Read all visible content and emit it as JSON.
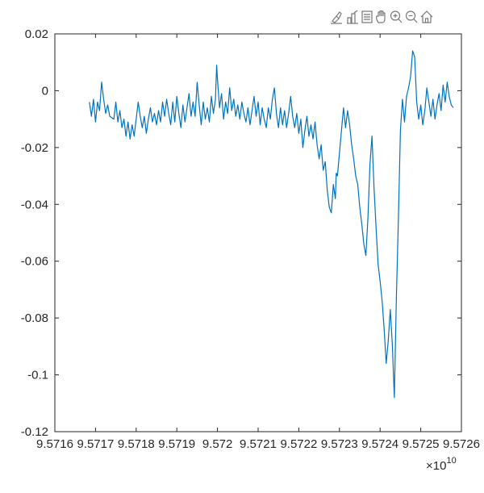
{
  "toolbar": {
    "buttons": [
      {
        "name": "brush-icon"
      },
      {
        "name": "data-tips-icon"
      },
      {
        "name": "legend-icon"
      },
      {
        "name": "pan-hand-icon"
      },
      {
        "name": "zoom-in-icon"
      },
      {
        "name": "zoom-out-icon"
      },
      {
        "name": "home-restore-view-icon"
      }
    ]
  },
  "chart_data": {
    "type": "line",
    "title": "",
    "xlabel": "",
    "ylabel": "",
    "xlim": [
      95716000000,
      95726000000
    ],
    "ylim": [
      -0.12,
      0.02
    ],
    "x_ticks": [
      95716000000,
      95717000000,
      95718000000,
      95719000000,
      95720000000,
      95721000000,
      95722000000,
      95723000000,
      95724000000,
      95725000000,
      95726000000
    ],
    "x_tick_labels": [
      "9.5716",
      "9.5717",
      "9.5718",
      "9.5719",
      "9.572",
      "9.5721",
      "9.5722",
      "9.5723",
      "9.5724",
      "9.5725",
      "9.5726"
    ],
    "x_exponent_base": "×10",
    "x_exponent_power": "10",
    "y_ticks": [
      0.02,
      0,
      -0.02,
      -0.04,
      -0.06,
      -0.08,
      -0.1,
      -0.12
    ],
    "y_tick_labels": [
      "0.02",
      "0",
      "-0.02",
      "-0.04",
      "-0.06",
      "-0.08",
      "-0.1",
      "-0.12"
    ],
    "grid": false,
    "color": "#0072BD",
    "series": [
      {
        "points": [
          [
            95716850000,
            -0.004
          ],
          [
            95716900000,
            -0.009
          ],
          [
            95716950000,
            -0.003
          ],
          [
            95717000000,
            -0.011
          ],
          [
            95717050000,
            -0.004
          ],
          [
            95717100000,
            -0.007
          ],
          [
            95717150000,
            0.003
          ],
          [
            95717200000,
            -0.003
          ],
          [
            95717250000,
            -0.008
          ],
          [
            95717300000,
            -0.005
          ],
          [
            95717350000,
            -0.009
          ],
          [
            95717450000,
            -0.01
          ],
          [
            95717500000,
            -0.004
          ],
          [
            95717550000,
            -0.011
          ],
          [
            95717600000,
            -0.007
          ],
          [
            95717650000,
            -0.013
          ],
          [
            95717700000,
            -0.01
          ],
          [
            95717750000,
            -0.016
          ],
          [
            95717800000,
            -0.011
          ],
          [
            95717850000,
            -0.017
          ],
          [
            95717900000,
            -0.012
          ],
          [
            95717950000,
            -0.016
          ],
          [
            95718000000,
            -0.01
          ],
          [
            95718050000,
            -0.004
          ],
          [
            95718100000,
            -0.009
          ],
          [
            95718150000,
            -0.013
          ],
          [
            95718200000,
            -0.009
          ],
          [
            95718250000,
            -0.015
          ],
          [
            95718300000,
            -0.01
          ],
          [
            95718350000,
            -0.006
          ],
          [
            95718400000,
            -0.011
          ],
          [
            95718450000,
            -0.008
          ],
          [
            95718500000,
            -0.012
          ],
          [
            95718550000,
            -0.007
          ],
          [
            95718600000,
            -0.011
          ],
          [
            95718650000,
            -0.004
          ],
          [
            95718700000,
            -0.009
          ],
          [
            95718750000,
            -0.003
          ],
          [
            95718800000,
            -0.008
          ],
          [
            95718850000,
            -0.012
          ],
          [
            95718900000,
            -0.004
          ],
          [
            95718950000,
            -0.011
          ],
          [
            95719000000,
            -0.002
          ],
          [
            95719050000,
            -0.008
          ],
          [
            95719100000,
            -0.013
          ],
          [
            95719150000,
            -0.005
          ],
          [
            95719200000,
            -0.011
          ],
          [
            95719250000,
            -0.006
          ],
          [
            95719300000,
            -0.001
          ],
          [
            95719350000,
            -0.009
          ],
          [
            95719400000,
            -0.004
          ],
          [
            95719450000,
            -0.009
          ],
          [
            95719500000,
            0.003
          ],
          [
            95719550000,
            -0.005
          ],
          [
            95719600000,
            -0.012
          ],
          [
            95719650000,
            -0.004
          ],
          [
            95719700000,
            -0.01
          ],
          [
            95719750000,
            -0.006
          ],
          [
            95719800000,
            -0.011
          ],
          [
            95719850000,
            -0.002
          ],
          [
            95719900000,
            -0.008
          ],
          [
            95719950000,
            -0.003
          ],
          [
            95719980000,
            0.009
          ],
          [
            95720000000,
            0.004
          ],
          [
            95720050000,
            -0.006
          ],
          [
            95720100000,
            -0.001
          ],
          [
            95720150000,
            -0.01
          ],
          [
            95720200000,
            -0.004
          ],
          [
            95720250000,
            -0.008
          ],
          [
            95720300000,
            0.001
          ],
          [
            95720350000,
            -0.007
          ],
          [
            95720400000,
            -0.003
          ],
          [
            95720450000,
            -0.009
          ],
          [
            95720500000,
            -0.005
          ],
          [
            95720550000,
            -0.01
          ],
          [
            95720600000,
            -0.004
          ],
          [
            95720650000,
            -0.008
          ],
          [
            95720700000,
            -0.011
          ],
          [
            95720750000,
            -0.006
          ],
          [
            95720800000,
            -0.012
          ],
          [
            95720850000,
            -0.007
          ],
          [
            95720900000,
            -0.002
          ],
          [
            95720950000,
            -0.009
          ],
          [
            95721000000,
            -0.004
          ],
          [
            95721050000,
            -0.012
          ],
          [
            95721100000,
            -0.006
          ],
          [
            95721150000,
            -0.01
          ],
          [
            95721200000,
            -0.013
          ],
          [
            95721250000,
            -0.006
          ],
          [
            95721300000,
            -0.01
          ],
          [
            95721350000,
            -0.003
          ],
          [
            95721400000,
            0.001
          ],
          [
            95721450000,
            -0.008
          ],
          [
            95721500000,
            -0.013
          ],
          [
            95721550000,
            -0.006
          ],
          [
            95721600000,
            -0.012
          ],
          [
            95721650000,
            -0.007
          ],
          [
            95721700000,
            -0.013
          ],
          [
            95721750000,
            -0.008
          ],
          [
            95721800000,
            -0.002
          ],
          [
            95721850000,
            -0.009
          ],
          [
            95721900000,
            -0.013
          ],
          [
            95721950000,
            -0.008
          ],
          [
            95722000000,
            -0.015
          ],
          [
            95722050000,
            -0.01
          ],
          [
            95722100000,
            -0.02
          ],
          [
            95722150000,
            -0.014
          ],
          [
            95722200000,
            -0.009
          ],
          [
            95722250000,
            -0.016
          ],
          [
            95722300000,
            -0.012
          ],
          [
            95722350000,
            -0.017
          ],
          [
            95722400000,
            -0.011
          ],
          [
            95722450000,
            -0.019
          ],
          [
            95722500000,
            -0.024
          ],
          [
            95722550000,
            -0.019
          ],
          [
            95722600000,
            -0.028
          ],
          [
            95722650000,
            -0.025
          ],
          [
            95722700000,
            -0.035
          ],
          [
            95722750000,
            -0.041
          ],
          [
            95722800000,
            -0.043
          ],
          [
            95722850000,
            -0.033
          ],
          [
            95722900000,
            -0.038
          ],
          [
            95722920000,
            -0.029
          ],
          [
            95722950000,
            -0.03
          ],
          [
            95723000000,
            -0.022
          ],
          [
            95723050000,
            -0.014
          ],
          [
            95723100000,
            -0.006
          ],
          [
            95723150000,
            -0.013
          ],
          [
            95723200000,
            -0.007
          ],
          [
            95723250000,
            -0.012
          ],
          [
            95723300000,
            -0.019
          ],
          [
            95723350000,
            -0.024
          ],
          [
            95723400000,
            -0.03
          ],
          [
            95723450000,
            -0.033
          ],
          [
            95723500000,
            -0.041
          ],
          [
            95723550000,
            -0.047
          ],
          [
            95723600000,
            -0.054
          ],
          [
            95723650000,
            -0.058
          ],
          [
            95723700000,
            -0.045
          ],
          [
            95723750000,
            -0.026
          ],
          [
            95723800000,
            -0.016
          ],
          [
            95723850000,
            -0.034
          ],
          [
            95723900000,
            -0.048
          ],
          [
            95723950000,
            -0.061
          ],
          [
            95724000000,
            -0.067
          ],
          [
            95724050000,
            -0.074
          ],
          [
            95724100000,
            -0.084
          ],
          [
            95724150000,
            -0.096
          ],
          [
            95724200000,
            -0.088
          ],
          [
            95724250000,
            -0.077
          ],
          [
            95724300000,
            -0.089
          ],
          [
            95724350000,
            -0.108
          ],
          [
            95724400000,
            -0.073
          ],
          [
            95724450000,
            -0.045
          ],
          [
            95724500000,
            -0.014
          ],
          [
            95724550000,
            -0.003
          ],
          [
            95724600000,
            -0.011
          ],
          [
            95724650000,
            -0.002
          ],
          [
            95724700000,
            0.001
          ],
          [
            95724750000,
            0.005
          ],
          [
            95724800000,
            0.014
          ],
          [
            95724850000,
            0.012
          ],
          [
            95724900000,
            -0.004
          ],
          [
            95724950000,
            -0.01
          ],
          [
            95725000000,
            -0.005
          ],
          [
            95725050000,
            -0.012
          ],
          [
            95725100000,
            -0.007
          ],
          [
            95725150000,
            0.001
          ],
          [
            95725200000,
            -0.004
          ],
          [
            95725250000,
            -0.009
          ],
          [
            95725300000,
            -0.003
          ],
          [
            95725350000,
            -0.01
          ],
          [
            95725400000,
            -0.005
          ],
          [
            95725450000,
            -0.001
          ],
          [
            95725500000,
            -0.007
          ],
          [
            95725550000,
            0.002
          ],
          [
            95725600000,
            -0.004
          ],
          [
            95725650000,
            0.003
          ],
          [
            95725700000,
            -0.002
          ],
          [
            95725750000,
            -0.005
          ],
          [
            95725800000,
            -0.006
          ]
        ]
      }
    ]
  }
}
